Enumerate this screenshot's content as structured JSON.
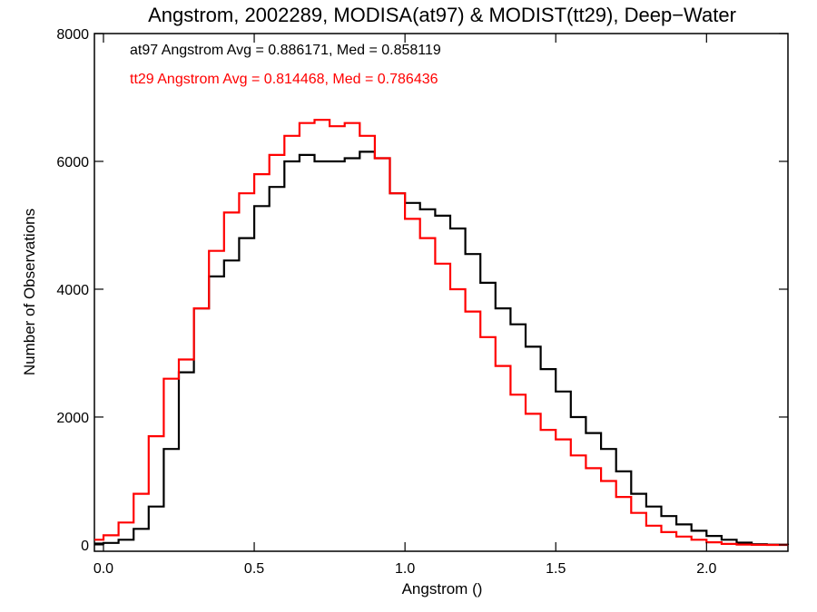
{
  "chart_data": {
    "type": "line",
    "step": true,
    "title": "Angstrom, 2002289, MODISA(at97) & MODIST(tt29), Deep−Water",
    "xlabel": "Angstrom ()",
    "ylabel": "Number of Observations",
    "xlim": [
      -0.03,
      2.27
    ],
    "ylim": [
      -100,
      8000
    ],
    "xticks": [
      0.0,
      0.5,
      1.0,
      1.5,
      2.0
    ],
    "xtick_labels": [
      "0.0",
      "0.5",
      "1.0",
      "1.5",
      "2.0"
    ],
    "yticks": [
      0,
      2000,
      4000,
      6000,
      8000
    ],
    "ytick_labels": [
      "0",
      "2000",
      "4000",
      "6000",
      "8000"
    ],
    "grid": false,
    "annotations": [
      {
        "text": "at97 Angstrom Avg = 0.886171, Med = 0.858119",
        "color": "#000000"
      },
      {
        "text": "tt29 Angstrom Avg = 0.814468, Med = 0.786436",
        "color": "#ff0000"
      }
    ],
    "series": [
      {
        "color": "#000000",
        "x": [
          -0.03,
          0.0,
          0.05,
          0.1,
          0.15,
          0.2,
          0.25,
          0.3,
          0.35,
          0.4,
          0.45,
          0.5,
          0.55,
          0.6,
          0.65,
          0.7,
          0.75,
          0.8,
          0.85,
          0.9,
          0.95,
          1.0,
          1.05,
          1.1,
          1.15,
          1.2,
          1.25,
          1.3,
          1.35,
          1.4,
          1.45,
          1.5,
          1.55,
          1.6,
          1.65,
          1.7,
          1.75,
          1.8,
          1.85,
          1.9,
          1.95,
          2.0,
          2.05,
          2.1,
          2.15,
          2.2,
          2.27
        ],
        "y": [
          20,
          30,
          80,
          250,
          600,
          1500,
          2700,
          3700,
          4200,
          4450,
          4800,
          5300,
          5600,
          6000,
          6100,
          6000,
          6000,
          6050,
          6150,
          6050,
          5500,
          5350,
          5250,
          5150,
          4950,
          4550,
          4100,
          3700,
          3450,
          3100,
          2750,
          2400,
          2000,
          1750,
          1500,
          1150,
          800,
          600,
          450,
          320,
          220,
          140,
          80,
          35,
          10,
          3,
          0
        ]
      },
      {
        "color": "#ff0000",
        "x": [
          -0.03,
          0.0,
          0.05,
          0.1,
          0.15,
          0.2,
          0.25,
          0.3,
          0.35,
          0.4,
          0.45,
          0.5,
          0.55,
          0.6,
          0.65,
          0.7,
          0.75,
          0.8,
          0.85,
          0.9,
          0.95,
          1.0,
          1.05,
          1.1,
          1.15,
          1.2,
          1.25,
          1.3,
          1.35,
          1.4,
          1.45,
          1.5,
          1.55,
          1.6,
          1.65,
          1.7,
          1.75,
          1.8,
          1.85,
          1.9,
          1.95,
          2.0,
          2.05,
          2.1,
          2.15,
          2.2,
          2.27
        ],
        "y": [
          80,
          150,
          350,
          800,
          1700,
          2600,
          2900,
          3700,
          4600,
          5200,
          5500,
          5800,
          6100,
          6400,
          6600,
          6650,
          6550,
          6600,
          6400,
          6050,
          5500,
          5100,
          4800,
          4400,
          4000,
          3650,
          3250,
          2800,
          2350,
          2050,
          1800,
          1650,
          1400,
          1200,
          1000,
          750,
          500,
          300,
          200,
          130,
          80,
          40,
          15,
          5,
          1,
          0,
          0
        ]
      }
    ]
  }
}
